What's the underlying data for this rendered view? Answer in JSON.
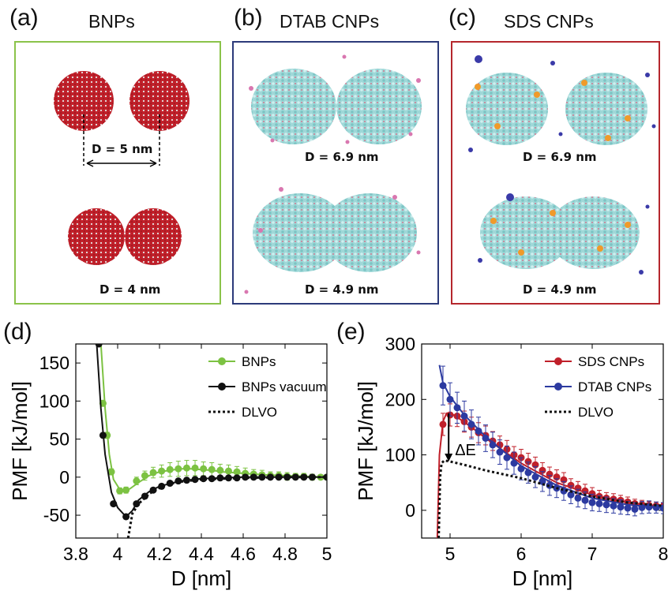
{
  "panels": {
    "a": {
      "label": "(a)",
      "title": "BNPs",
      "frame_color": "#8bc34a",
      "distance_top": "D = 5 nm",
      "distance_bottom": "D = 4 nm"
    },
    "b": {
      "label": "(b)",
      "title": "DTAB CNPs",
      "frame_color": "#2c3a7a",
      "distance_top": "D = 6.9 nm",
      "distance_bottom": "D = 4.9 nm"
    },
    "c": {
      "label": "(c)",
      "title": "SDS CNPs",
      "frame_color": "#b5272d",
      "distance_top": "D = 6.9 nm",
      "distance_bottom": "D = 4.9 nm"
    },
    "d": {
      "label": "(d)"
    },
    "e": {
      "label": "(e)"
    }
  },
  "colors": {
    "bnp_red": "#c0202a",
    "bnp_light": "#e8e8e8",
    "cnp_cyan": "#a8dede",
    "cnp_pink": "#d977b0",
    "sds_orange": "#f09a2a",
    "sds_blue": "#3a3aa8"
  },
  "chart_data": [
    {
      "id": "d",
      "type": "line",
      "xlabel": "D [nm]",
      "ylabel": "PMF [kJ/mol]",
      "xlim": [
        3.8,
        5.0
      ],
      "ylim": [
        -80,
        175
      ],
      "xticks": [
        3.8,
        4.0,
        4.2,
        4.4,
        4.6,
        4.8,
        5.0
      ],
      "xtick_labels": [
        "3.8",
        "4",
        "4.2",
        "4.4",
        "4.6",
        "4.8",
        "5"
      ],
      "yticks": [
        -50,
        0,
        50,
        100,
        150
      ],
      "ytick_labels": [
        "-50",
        "0",
        "50",
        "100",
        "150"
      ],
      "legend_position": "top-right",
      "series": [
        {
          "name": "BNPs",
          "color": "#7cc242",
          "style": "points+line",
          "points": [
            [
              3.93,
              97
            ],
            [
              3.95,
              55
            ],
            [
              3.97,
              7
            ],
            [
              4.01,
              -18
            ],
            [
              4.04,
              -17
            ],
            [
              4.09,
              -5
            ],
            [
              4.13,
              2
            ],
            [
              4.17,
              6
            ],
            [
              4.21,
              8
            ],
            [
              4.25,
              10
            ],
            [
              4.29,
              11
            ],
            [
              4.33,
              12
            ],
            [
              4.37,
              12
            ],
            [
              4.41,
              11
            ],
            [
              4.45,
              10
            ],
            [
              4.49,
              9
            ],
            [
              4.53,
              8
            ],
            [
              4.57,
              7
            ],
            [
              4.61,
              5
            ],
            [
              4.65,
              4
            ],
            [
              4.69,
              3
            ],
            [
              4.73,
              2
            ],
            [
              4.77,
              2
            ],
            [
              4.81,
              1
            ],
            [
              4.85,
              1
            ],
            [
              4.89,
              1
            ],
            [
              4.93,
              0
            ],
            [
              4.97,
              0
            ],
            [
              5.0,
              0
            ]
          ],
          "errors": [
            4,
            4,
            4,
            4,
            4,
            5,
            6,
            7,
            8,
            9,
            10,
            10,
            10,
            9,
            9,
            8,
            8,
            7,
            7,
            6,
            6,
            5,
            5,
            5,
            4,
            4,
            4,
            3,
            3
          ],
          "curve": [
            [
              3.92,
              175
            ],
            [
              3.94,
              90
            ],
            [
              3.96,
              30
            ],
            [
              3.98,
              -3
            ],
            [
              4.01,
              -16
            ],
            [
              4.03,
              -19
            ],
            [
              4.06,
              -15
            ],
            [
              4.1,
              -7
            ],
            [
              4.15,
              2
            ],
            [
              4.2,
              7
            ],
            [
              4.25,
              9
            ],
            [
              4.3,
              11
            ],
            [
              4.35,
              11
            ],
            [
              4.4,
              10
            ],
            [
              4.45,
              9
            ],
            [
              4.5,
              7
            ],
            [
              4.6,
              5
            ],
            [
              4.7,
              3
            ],
            [
              4.8,
              2
            ],
            [
              4.9,
              1
            ],
            [
              5.0,
              0
            ]
          ]
        },
        {
          "name": "BNPs vacuum",
          "color": "#111111",
          "style": "points+line",
          "points": [
            [
              3.91,
              175
            ],
            [
              3.93,
              55
            ],
            [
              3.98,
              -35
            ],
            [
              4.04,
              -52
            ],
            [
              4.09,
              -35
            ],
            [
              4.13,
              -25
            ],
            [
              4.17,
              -17
            ],
            [
              4.21,
              -12
            ],
            [
              4.25,
              -8
            ],
            [
              4.29,
              -5
            ],
            [
              4.33,
              -4
            ],
            [
              4.37,
              -3
            ],
            [
              4.41,
              -2
            ],
            [
              4.45,
              -2
            ],
            [
              4.49,
              -1
            ],
            [
              4.53,
              -1
            ],
            [
              4.57,
              -1
            ],
            [
              4.61,
              0
            ],
            [
              4.65,
              0
            ],
            [
              4.69,
              0
            ],
            [
              4.73,
              0
            ],
            [
              4.77,
              0
            ],
            [
              4.81,
              0
            ],
            [
              4.85,
              0
            ],
            [
              4.89,
              0
            ],
            [
              4.93,
              0
            ],
            [
              5.0,
              0
            ]
          ],
          "curve": [
            [
              3.9,
              175
            ],
            [
              3.92,
              90
            ],
            [
              3.94,
              30
            ],
            [
              3.97,
              -20
            ],
            [
              4.0,
              -40
            ],
            [
              4.04,
              -52
            ],
            [
              4.07,
              -44
            ],
            [
              4.1,
              -30
            ],
            [
              4.15,
              -19
            ],
            [
              4.2,
              -12
            ],
            [
              4.3,
              -5
            ],
            [
              4.4,
              -2
            ],
            [
              4.5,
              -1
            ],
            [
              4.6,
              0
            ],
            [
              5.0,
              0
            ]
          ]
        },
        {
          "name": "DLVO",
          "color": "#111111",
          "style": "dotted",
          "curve": [
            [
              4.05,
              -80
            ],
            [
              4.07,
              -48
            ],
            [
              4.1,
              -35
            ],
            [
              4.15,
              -22
            ],
            [
              4.2,
              -14
            ],
            [
              4.25,
              -9
            ],
            [
              4.3,
              -6
            ],
            [
              4.4,
              -3
            ],
            [
              4.5,
              -2
            ],
            [
              4.6,
              -1
            ],
            [
              4.8,
              0
            ],
            [
              5.0,
              0
            ]
          ]
        }
      ]
    },
    {
      "id": "e",
      "type": "line",
      "xlabel": "D [nm]",
      "ylabel": "PMF [kJ/mol]",
      "xlim": [
        4.6,
        8.0
      ],
      "ylim": [
        -50,
        300
      ],
      "xticks": [
        5,
        6,
        7,
        8
      ],
      "xtick_labels": [
        "5",
        "6",
        "7",
        "8"
      ],
      "yticks": [
        0,
        100,
        200,
        300
      ],
      "ytick_labels": [
        "0",
        "100",
        "200",
        "300"
      ],
      "legend_position": "top-right",
      "annotation": {
        "text": "ΔE",
        "x": 4.98,
        "y_top": 175,
        "y_bottom": 88
      },
      "series": [
        {
          "name": "SDS CNPs",
          "color": "#c0202a",
          "style": "points+line",
          "points": [
            [
              4.9,
              155
            ],
            [
              5.0,
              172
            ],
            [
              5.1,
              170
            ],
            [
              5.2,
              160
            ],
            [
              5.3,
              150
            ],
            [
              5.4,
              140
            ],
            [
              5.5,
              135
            ],
            [
              5.6,
              125
            ],
            [
              5.7,
              118
            ],
            [
              5.8,
              110
            ],
            [
              5.9,
              100
            ],
            [
              6.0,
              95
            ],
            [
              6.1,
              88
            ],
            [
              6.2,
              82
            ],
            [
              6.3,
              72
            ],
            [
              6.4,
              65
            ],
            [
              6.5,
              60
            ],
            [
              6.6,
              55
            ],
            [
              6.7,
              45
            ],
            [
              6.8,
              40
            ],
            [
              6.9,
              35
            ],
            [
              7.0,
              30
            ],
            [
              7.1,
              25
            ],
            [
              7.2,
              22
            ],
            [
              7.3,
              20
            ],
            [
              7.4,
              18
            ],
            [
              7.5,
              15
            ],
            [
              7.6,
              12
            ],
            [
              7.7,
              10
            ],
            [
              7.8,
              9
            ],
            [
              7.9,
              8
            ],
            [
              8.0,
              7
            ]
          ],
          "errors": [
            20,
            20,
            19,
            19,
            18,
            18,
            17,
            17,
            16,
            16,
            15,
            15,
            15,
            14,
            14,
            13,
            13,
            13,
            12,
            12,
            12,
            11,
            11,
            10,
            10,
            9,
            9,
            8,
            8,
            7,
            7,
            6
          ],
          "curve": [
            [
              4.82,
              -50
            ],
            [
              4.85,
              100
            ],
            [
              4.9,
              160
            ],
            [
              4.95,
              175
            ],
            [
              5.0,
              176
            ],
            [
              5.1,
              168
            ],
            [
              5.3,
              150
            ],
            [
              5.5,
              130
            ],
            [
              6.0,
              85
            ],
            [
              6.5,
              50
            ],
            [
              7.0,
              28
            ],
            [
              7.5,
              14
            ],
            [
              8.0,
              6
            ]
          ]
        },
        {
          "name": "DTAB CNPs",
          "color": "#2c3aa0",
          "style": "points+line",
          "points": [
            [
              4.9,
              225
            ],
            [
              5.0,
              200
            ],
            [
              5.1,
              185
            ],
            [
              5.2,
              170
            ],
            [
              5.3,
              155
            ],
            [
              5.4,
              143
            ],
            [
              5.5,
              130
            ],
            [
              5.6,
              118
            ],
            [
              5.7,
              105
            ],
            [
              5.8,
              95
            ],
            [
              5.9,
              85
            ],
            [
              6.0,
              75
            ],
            [
              6.1,
              68
            ],
            [
              6.2,
              60
            ],
            [
              6.3,
              52
            ],
            [
              6.4,
              45
            ],
            [
              6.5,
              40
            ],
            [
              6.6,
              35
            ],
            [
              6.7,
              28
            ],
            [
              6.8,
              22
            ],
            [
              6.9,
              18
            ],
            [
              7.0,
              14
            ],
            [
              7.1,
              12
            ],
            [
              7.2,
              10
            ],
            [
              7.3,
              8
            ],
            [
              7.4,
              6
            ],
            [
              7.5,
              4
            ],
            [
              7.6,
              2
            ],
            [
              7.7,
              5
            ],
            [
              7.8,
              6
            ],
            [
              7.9,
              5
            ],
            [
              8.0,
              4
            ]
          ],
          "errors": [
            35,
            30,
            28,
            27,
            26,
            25,
            24,
            23,
            22,
            21,
            20,
            20,
            19,
            19,
            18,
            18,
            17,
            17,
            16,
            16,
            15,
            15,
            14,
            14,
            13,
            13,
            12,
            12,
            11,
            11,
            10,
            10
          ],
          "curve": [
            [
              4.85,
              262
            ],
            [
              4.9,
              230
            ],
            [
              5.0,
              205
            ],
            [
              5.2,
              172
            ],
            [
              5.5,
              133
            ],
            [
              6.0,
              80
            ],
            [
              6.5,
              45
            ],
            [
              7.0,
              22
            ],
            [
              7.5,
              10
            ],
            [
              8.0,
              4
            ]
          ]
        },
        {
          "name": "DLVO",
          "color": "#111111",
          "style": "dotted",
          "curve": [
            [
              4.84,
              -50
            ],
            [
              4.86,
              60
            ],
            [
              4.88,
              85
            ],
            [
              4.92,
              90
            ],
            [
              5.0,
              88
            ],
            [
              5.2,
              82
            ],
            [
              5.5,
              72
            ],
            [
              6.0,
              58
            ],
            [
              6.5,
              40
            ],
            [
              7.0,
              25
            ],
            [
              7.5,
              14
            ],
            [
              8.0,
              8
            ]
          ]
        }
      ]
    }
  ]
}
